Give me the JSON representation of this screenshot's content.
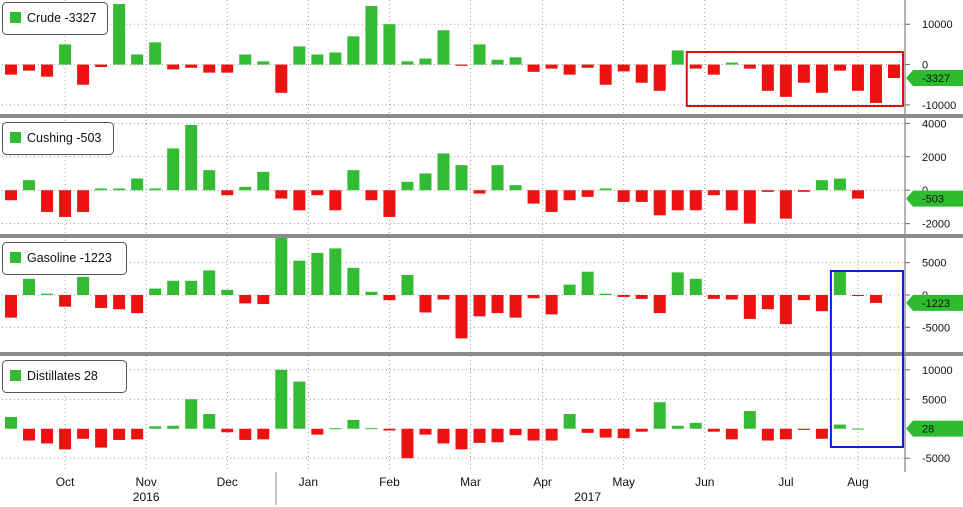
{
  "colors": {
    "positive": "#33bb33",
    "negative": "#ee1111",
    "grid": "#9a9a9a",
    "separator": "#8c8c8c",
    "axis_badge": "#2fbb2f",
    "red_box": "#e01010",
    "blue_box": "#0a1fe0"
  },
  "chart_data": {
    "type": "bar",
    "x_labels": [
      {
        "label": "Oct",
        "week": 3
      },
      {
        "label": "Nov",
        "week": 7.5
      },
      {
        "label": "Dec",
        "week": 12
      },
      {
        "label": "Jan",
        "week": 16.5
      },
      {
        "label": "Feb",
        "week": 21
      },
      {
        "label": "Mar",
        "week": 25.5
      },
      {
        "label": "Apr",
        "week": 29.5
      },
      {
        "label": "May",
        "week": 34
      },
      {
        "label": "Jun",
        "week": 38.5
      },
      {
        "label": "Jul",
        "week": 43
      },
      {
        "label": "Aug",
        "week": 47
      }
    ],
    "year_labels": [
      {
        "label": "2016",
        "week": 7.5
      },
      {
        "label": "2017",
        "week": 32
      }
    ],
    "panels": [
      {
        "legend": "Crude -3327",
        "last_value": "-3327",
        "ylim": [
          -12000,
          16000
        ],
        "ticks": [
          {
            "value": 10000,
            "label": "10000"
          },
          {
            "value": 0,
            "label": "0"
          },
          {
            "value": -10000,
            "label": "-10000"
          }
        ],
        "values": [
          -2500,
          -1500,
          -3000,
          5000,
          -5000,
          -600,
          15000,
          2500,
          5500,
          -1200,
          -800,
          -2000,
          -2000,
          2500,
          800,
          -7000,
          4500,
          2500,
          3000,
          7000,
          14500,
          10000,
          800,
          1500,
          8500,
          -300,
          5000,
          1200,
          1800,
          -1800,
          -1000,
          -2500,
          -800,
          -5000,
          -1700,
          -4500,
          -6500,
          3500,
          -1000,
          -2500,
          500,
          -1000,
          -6500,
          -8000,
          -4500,
          -7000,
          -1500,
          -6500,
          -9500,
          -3327
        ],
        "highlight_box": {
          "color": "red_box",
          "from_week": 37.5,
          "to_week": 49.5
        }
      },
      {
        "legend": "Cushing -503",
        "last_value": "-503",
        "ylim": [
          -2500,
          4200
        ],
        "ticks": [
          {
            "value": 4000,
            "label": "4000"
          },
          {
            "value": 2000,
            "label": "2000"
          },
          {
            "value": 0,
            "label": "0"
          },
          {
            "value": -2000,
            "label": "-2000"
          }
        ],
        "values": [
          -600,
          600,
          -1300,
          -1600,
          -1300,
          100,
          100,
          700,
          100,
          2500,
          3900,
          1200,
          -300,
          200,
          1100,
          -500,
          -1200,
          -300,
          -1200,
          1200,
          -600,
          -1600,
          500,
          1000,
          2200,
          1500,
          -200,
          1500,
          300,
          -800,
          -1300,
          -600,
          -400,
          100,
          -700,
          -700,
          -1500,
          -1200,
          -1200,
          -300,
          -1200,
          -2000,
          -100,
          -1700,
          -100,
          600,
          700,
          -503
        ]
      },
      {
        "legend": "Gasoline -1223",
        "last_value": "-1223",
        "ylim": [
          -8500,
          8500
        ],
        "ticks": [
          {
            "value": 5000,
            "label": "5000"
          },
          {
            "value": 0,
            "label": "0"
          },
          {
            "value": -5000,
            "label": "-5000"
          }
        ],
        "values": [
          -3500,
          2500,
          200,
          -1800,
          2800,
          -2000,
          -2200,
          -2800,
          1000,
          2200,
          2200,
          3800,
          800,
          -1300,
          -1400,
          9000,
          5300,
          6500,
          7200,
          4200,
          500,
          -800,
          3100,
          -2700,
          -700,
          -6700,
          -3300,
          -2800,
          -3500,
          -500,
          -3000,
          1600,
          3600,
          200,
          -300,
          -600,
          -2800,
          3500,
          2500,
          -600,
          -700,
          -3700,
          -2200,
          -4500,
          -800,
          -2500,
          3800,
          -100,
          -1223
        ],
        "highlight_box": {
          "color": "blue_box",
          "from_week": 45.5,
          "to_week": 49.5
        }
      },
      {
        "legend": "Distillates 28",
        "last_value": "28",
        "ylim": [
          -7000,
          12000
        ],
        "ticks": [
          {
            "value": 10000,
            "label": "10000"
          },
          {
            "value": 5000,
            "label": "5000"
          },
          {
            "value": -5000,
            "label": "-5000"
          }
        ],
        "values": [
          2000,
          -2000,
          -2500,
          -3500,
          -1700,
          -3200,
          -1900,
          -1800,
          400,
          500,
          5000,
          2500,
          -600,
          -1900,
          -1800,
          10000,
          8000,
          -1000,
          100,
          1500,
          100,
          -300,
          -5000,
          -1000,
          -2500,
          -3500,
          -2400,
          -2300,
          -1100,
          -2000,
          -2000,
          2500,
          -700,
          -1500,
          -1600,
          -500,
          4500,
          500,
          1000,
          -500,
          -1800,
          3000,
          -2000,
          -1800,
          -200,
          -1700,
          700,
          28
        ],
        "highlight_box": {
          "color": "blue_box",
          "from_week": 45.5,
          "to_week": 49.5
        }
      }
    ]
  }
}
